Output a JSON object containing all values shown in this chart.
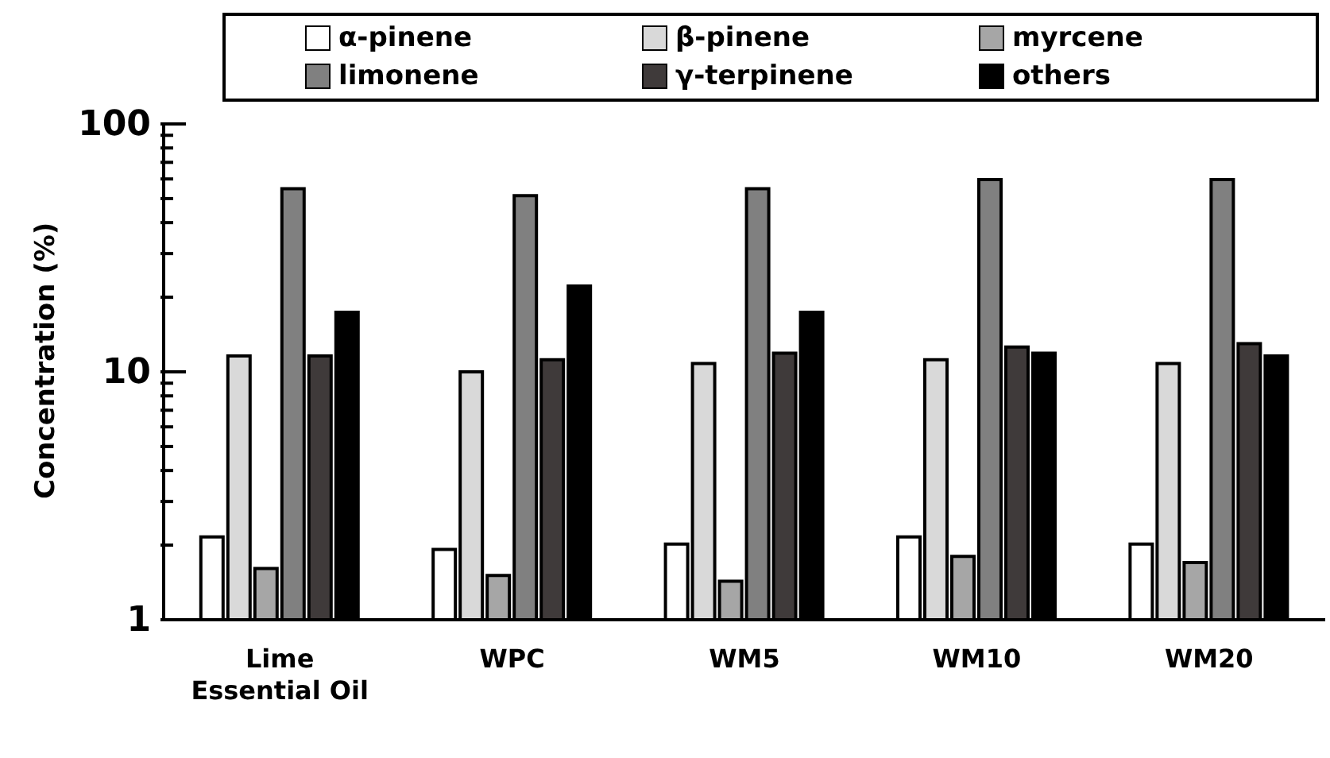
{
  "chart_data": {
    "type": "bar",
    "ylabel": "Concentration (%)",
    "categories": [
      "Lime\nEssential Oil",
      "WPC",
      "WM5",
      "WM10",
      "WM20"
    ],
    "series": [
      {
        "name": "α-pinene",
        "color": "#ffffff",
        "values": [
          2.16,
          1.92,
          2.02,
          2.16,
          2.02
        ]
      },
      {
        "name": "β-pinene",
        "color": "#d9d9d9",
        "values": [
          11.6,
          10.0,
          10.8,
          11.2,
          10.8
        ]
      },
      {
        "name": "myrcene",
        "color": "#a6a6a6",
        "values": [
          1.61,
          1.51,
          1.43,
          1.8,
          1.7
        ]
      },
      {
        "name": "limonene",
        "color": "#808080",
        "values": [
          54.8,
          51.4,
          54.8,
          59.7,
          59.7
        ]
      },
      {
        "name": "γ-terpinene",
        "color": "#3f3a3a",
        "values": [
          11.6,
          11.2,
          11.9,
          12.6,
          13.0
        ]
      },
      {
        "name": "others",
        "color": "#000000",
        "values": [
          17.4,
          22.2,
          17.4,
          11.9,
          11.6
        ]
      }
    ],
    "log": true,
    "ylim": [
      1,
      100
    ],
    "yticks": [
      1,
      {
        "value": 2,
        "label": null
      },
      {
        "value": 3,
        "label": null
      },
      {
        "value": 4,
        "label": null
      },
      {
        "value": 5,
        "label": null
      },
      {
        "value": 6,
        "label": null
      },
      {
        "value": 7,
        "label": null
      },
      {
        "value": 8,
        "label": null
      },
      {
        "value": 9,
        "label": null
      },
      10,
      {
        "value": 20,
        "label": null
      },
      {
        "value": 30,
        "label": null
      },
      {
        "value": 40,
        "label": null
      },
      {
        "value": 50,
        "label": null
      },
      {
        "value": 60,
        "label": null
      },
      {
        "value": 70,
        "label": null
      },
      {
        "value": 80,
        "label": null
      },
      {
        "value": 90,
        "label": null
      },
      100
    ],
    "legend": "top",
    "grid": false
  }
}
